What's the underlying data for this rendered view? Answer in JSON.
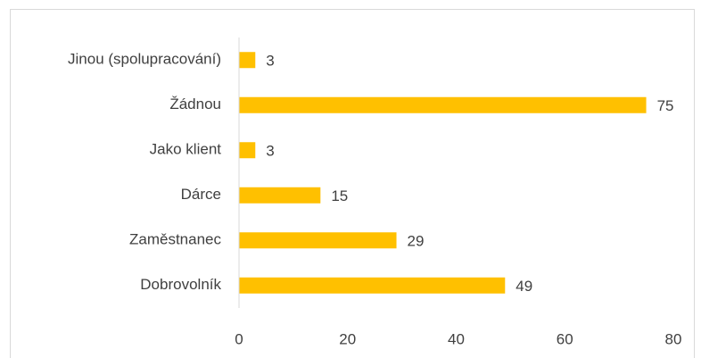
{
  "chart_data": {
    "type": "barh",
    "categories": [
      "Jinou (spolupracování)",
      "Žádnou",
      "Jako klient",
      "Dárce",
      "Zaměstnanec",
      "Dobrovolník"
    ],
    "values": [
      3,
      75,
      3,
      15,
      29,
      49
    ],
    "color": "#ffc000",
    "xlim": [
      0,
      80
    ],
    "xticks": [
      0,
      20,
      40,
      60,
      80
    ],
    "grid": false
  }
}
